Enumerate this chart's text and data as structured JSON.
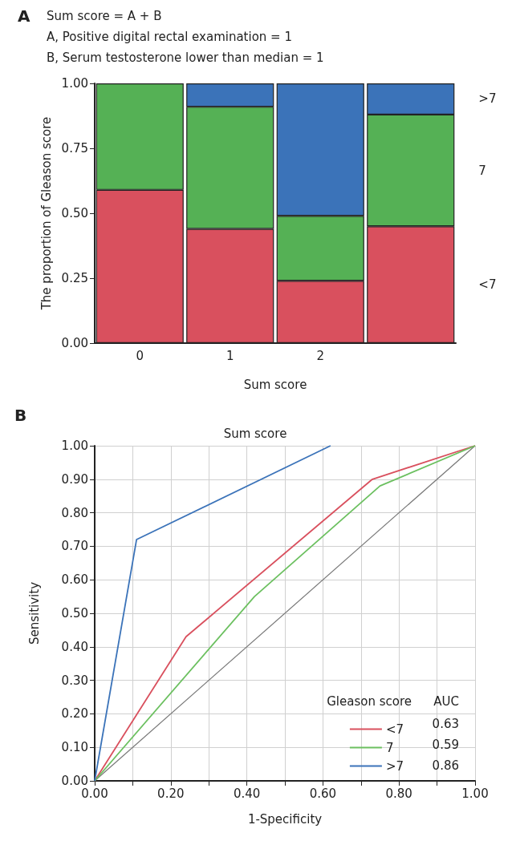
{
  "chart_data": [
    {
      "type": "bar",
      "stacked": true,
      "annotations": [
        "A",
        "Sum score = A + B",
        "A, Positive digital rectal examination = 1",
        "B, Serum testosterone lower than median = 1"
      ],
      "xlabel": "Sum score",
      "ylabel": "The proportion of Gleason score",
      "categories": [
        "0",
        "1",
        "2",
        null
      ],
      "ylim": [
        0,
        1
      ],
      "yticks": [
        {
          "value": 0,
          "label": "0.00"
        },
        {
          "value": 0.25,
          "label": "0.25"
        },
        {
          "value": 0.5,
          "label": "0.50"
        },
        {
          "value": 0.75,
          "label": "0.75"
        },
        {
          "value": 1,
          "label": "1.00"
        }
      ],
      "grid": false,
      "series": [
        {
          "name": "<7",
          "color": "#d9505e",
          "values": [
            0.59,
            0.44,
            0.24,
            0.45
          ]
        },
        {
          "name": "7",
          "color": "#55b155",
          "values": [
            0.41,
            0.47,
            0.25,
            0.43
          ]
        },
        {
          "name": ">7",
          "color": "#3b73b9",
          "values": [
            null,
            0.09,
            0.51,
            0.12
          ]
        }
      ]
    },
    {
      "type": "line",
      "title": "Sum score",
      "annotations": [
        "B",
        "AUC",
        "0.63",
        "0.59",
        "0.86"
      ],
      "xlabel": "1-Specificity",
      "ylabel": "Sensitivity",
      "legend_title": "Gleason score",
      "legend": "bottom right",
      "grid": true,
      "marker": "none",
      "line_style": "solid",
      "xlim": [
        0,
        1
      ],
      "ylim": [
        0,
        1
      ],
      "xticks": [
        {
          "value": 0,
          "label": "0.00"
        },
        {
          "value": 0.1,
          "label": null
        },
        {
          "value": 0.2,
          "label": "0.20"
        },
        {
          "value": 0.3,
          "label": null
        },
        {
          "value": 0.4,
          "label": "0.40"
        },
        {
          "value": 0.5,
          "label": null
        },
        {
          "value": 0.6,
          "label": "0.60"
        },
        {
          "value": 0.7,
          "label": null
        },
        {
          "value": 0.8,
          "label": "0.80"
        },
        {
          "value": 0.9,
          "label": null
        },
        {
          "value": 1,
          "label": "1.00"
        }
      ],
      "yticks": [
        {
          "value": 0,
          "label": "0.00"
        },
        {
          "value": 0.1,
          "label": "0.10"
        },
        {
          "value": 0.2,
          "label": "0.20"
        },
        {
          "value": 0.3,
          "label": "0.30"
        },
        {
          "value": 0.4,
          "label": "0.40"
        },
        {
          "value": 0.5,
          "label": "0.50"
        },
        {
          "value": 0.6,
          "label": "0.60"
        },
        {
          "value": 0.7,
          "label": "0.70"
        },
        {
          "value": 0.8,
          "label": "0.80"
        },
        {
          "value": 0.9,
          "label": "0.90"
        },
        {
          "value": 1,
          "label": "1.00"
        }
      ],
      "series": [
        {
          "name": "<7",
          "color": "#d9505e",
          "x": [
            0,
            0.24,
            0.73,
            1
          ],
          "values": [
            0,
            0.43,
            0.9,
            1
          ]
        },
        {
          "name": "7",
          "color": "#6cc060",
          "x": [
            0,
            0.42,
            0.75,
            1
          ],
          "values": [
            0,
            0.55,
            0.88,
            1
          ]
        },
        {
          "name": ">7",
          "color": "#3b73b9",
          "x": [
            0,
            0.11,
            0.62
          ],
          "values": [
            0,
            0.72,
            1
          ]
        },
        {
          "color": "#777777",
          "x": [
            0,
            1
          ],
          "values": [
            0,
            1
          ]
        }
      ]
    }
  ]
}
